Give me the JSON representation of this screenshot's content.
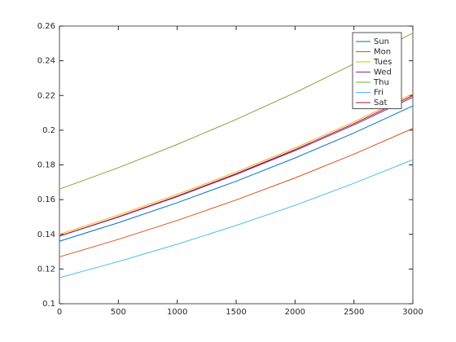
{
  "chart_data": {
    "type": "line",
    "x": [
      0,
      500,
      1000,
      1500,
      2000,
      2500,
      3000
    ],
    "series": [
      {
        "name": "Sun",
        "color": "#0072bd",
        "values": [
          0.136,
          0.1467,
          0.1582,
          0.1706,
          0.184,
          0.1984,
          0.214
        ]
      },
      {
        "name": "Mon",
        "color": "#d95319",
        "values": [
          0.127,
          0.1371,
          0.148,
          0.1598,
          0.1725,
          0.1862,
          0.201
        ]
      },
      {
        "name": "Tues",
        "color": "#edb120",
        "values": [
          0.14,
          0.1511,
          0.163,
          0.1759,
          0.1898,
          0.2048,
          0.221
        ]
      },
      {
        "name": "Wed",
        "color": "#7e2f8e",
        "values": [
          0.139,
          0.1499,
          0.1617,
          0.1745,
          0.1882,
          0.203,
          0.219
        ]
      },
      {
        "name": "Thu",
        "color": "#77ac30",
        "values": [
          0.166,
          0.1784,
          0.1918,
          0.2062,
          0.2216,
          0.2382,
          0.256
        ]
      },
      {
        "name": "Fri",
        "color": "#4dbeee",
        "values": [
          0.115,
          0.1243,
          0.1343,
          0.1451,
          0.1567,
          0.1694,
          0.183
        ]
      },
      {
        "name": "Sat",
        "color": "#a2142f",
        "values": [
          0.139,
          0.1501,
          0.162,
          0.1749,
          0.1888,
          0.2038,
          0.22
        ]
      }
    ],
    "xlim": [
      0,
      3000
    ],
    "xticks": [
      0,
      500,
      1000,
      1500,
      2000,
      2500,
      3000
    ],
    "ylim": [
      0.1,
      0.26
    ],
    "yticks": [
      0.1,
      0.12,
      0.14,
      0.16,
      0.18,
      0.2,
      0.22,
      0.24,
      0.26
    ],
    "legend": "northeast"
  }
}
